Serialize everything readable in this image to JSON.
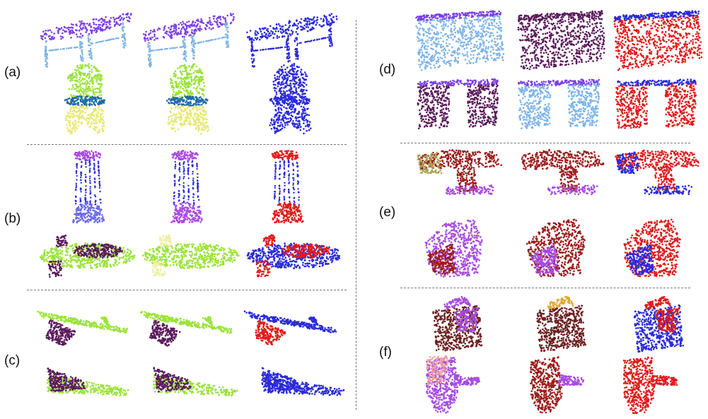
{
  "panels": {
    "a": "(a)",
    "b": "(b)",
    "c": "(c)",
    "d": "(d)",
    "e": "(e)",
    "f": "(f)"
  },
  "colors": {
    "violet": "#7b3fe4",
    "light_blue": "#7fb4e6",
    "blue": "#2a2ad8",
    "red": "#e01a1a",
    "lime": "#9be33a",
    "yellow": "#e8e873",
    "teal_blue": "#1f6aa5",
    "magenta_violet": "#a84be0",
    "dark_purple": "#5a1a5a",
    "pale_yellow": "#efefa8",
    "dark_red": "#9b1c1c",
    "olive": "#a6a04a",
    "brown": "#6b1f1f",
    "gold": "#e0a830",
    "pink": "#f0a0a0"
  }
}
